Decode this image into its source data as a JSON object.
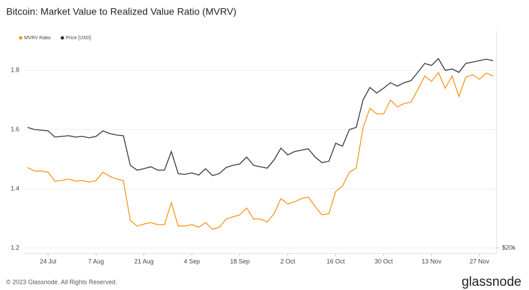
{
  "chart_data": {
    "type": "line",
    "title": "Bitcoin: Market Value to Realized Value Ratio (MVRV)",
    "footer": "© 2023 Glassnode. All Rights Reserved.",
    "brand": "glassnode",
    "categories": [
      null,
      null,
      null,
      "24 Jul",
      null,
      null,
      null,
      null,
      null,
      null,
      "7 Aug",
      null,
      null,
      null,
      null,
      null,
      null,
      "21 Aug",
      null,
      null,
      null,
      null,
      null,
      null,
      "4 Sep",
      null,
      null,
      null,
      null,
      null,
      null,
      "18 Sep",
      null,
      null,
      null,
      null,
      null,
      null,
      "2 Oct",
      null,
      null,
      null,
      null,
      null,
      null,
      "16 Oct",
      null,
      null,
      null,
      null,
      null,
      null,
      "30 Oct",
      null,
      null,
      null,
      null,
      null,
      null,
      "13 Nov",
      null,
      null,
      null,
      null,
      null,
      null,
      "27 Nov",
      null,
      null
    ],
    "series": [
      {
        "name": "MVRV Ratio",
        "color": "#f7931a",
        "axis": "y",
        "values": [
          1.472,
          1.46,
          1.46,
          1.456,
          1.426,
          1.428,
          1.433,
          1.426,
          1.428,
          1.423,
          1.428,
          1.456,
          1.442,
          1.433,
          1.428,
          1.293,
          1.274,
          1.281,
          1.286,
          1.279,
          1.279,
          1.353,
          1.274,
          1.274,
          1.279,
          1.27,
          1.286,
          1.263,
          1.27,
          1.298,
          1.305,
          1.312,
          1.335,
          1.298,
          1.298,
          1.288,
          1.316,
          1.367,
          1.349,
          1.356,
          1.367,
          1.372,
          1.34,
          1.312,
          1.316,
          1.391,
          1.409,
          1.456,
          1.47,
          1.607,
          1.672,
          1.653,
          1.653,
          1.7,
          1.677,
          1.688,
          1.693,
          1.735,
          1.781,
          1.763,
          1.793,
          1.74,
          1.781,
          1.712,
          1.777,
          1.786,
          1.77,
          1.791,
          1.781
        ]
      },
      {
        "name": "Price [USD]",
        "color": "#333333",
        "axis": "y2",
        "values": [
          30330,
          30150,
          30090,
          30030,
          29500,
          29560,
          29620,
          29500,
          29560,
          29440,
          29560,
          30030,
          29800,
          29680,
          29620,
          27080,
          26670,
          26790,
          26960,
          26670,
          26670,
          28260,
          26370,
          26310,
          26430,
          26250,
          26790,
          26200,
          26370,
          26900,
          27080,
          27200,
          27790,
          27080,
          26960,
          26840,
          27550,
          28560,
          27970,
          28260,
          28380,
          28500,
          27790,
          27320,
          27430,
          28970,
          28730,
          30150,
          30330,
          32690,
          33750,
          33280,
          33690,
          34160,
          33870,
          34160,
          34340,
          35050,
          35810,
          35640,
          36230,
          35220,
          35340,
          35050,
          35810,
          35930,
          36050,
          36170,
          36050
        ]
      }
    ],
    "ylim": [
      1.2,
      1.91
    ],
    "yticks": [
      1.2,
      1.4,
      1.6,
      1.8
    ],
    "y2lim": [
      20000,
      38000
    ],
    "y2ticks": [
      {
        "value": 20000,
        "label": "$20k"
      }
    ],
    "grid": true
  }
}
